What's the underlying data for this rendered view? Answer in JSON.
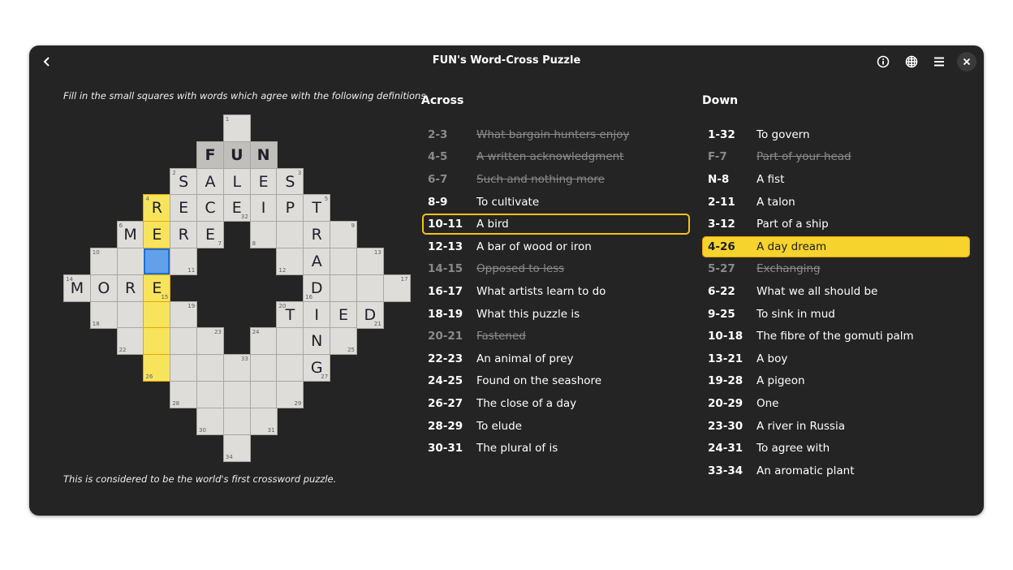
{
  "window": {
    "title": "FUN's Word-Cross Puzzle"
  },
  "header": {
    "icons": [
      "back-icon",
      "info-icon",
      "puzzle-icon",
      "menu-icon",
      "close-icon"
    ]
  },
  "intro": "Fill in the small squares with words which agree with the following definitions.",
  "outro": "This is considered to be the world's first crossword puzzle.",
  "colors": {
    "cell": "#deddda",
    "given": "#c0bfbc",
    "highlight": "#f8e45c",
    "selected": "#62a0ea",
    "active_clue": "#f6d32d"
  },
  "grid": {
    "cells": [
      {
        "r": 0,
        "c": 6,
        "n": "1",
        "p": "tl"
      },
      {
        "r": 1,
        "c": 5,
        "l": "F",
        "s": "given"
      },
      {
        "r": 1,
        "c": 6,
        "l": "U",
        "s": "given"
      },
      {
        "r": 1,
        "c": 7,
        "l": "N",
        "s": "given"
      },
      {
        "r": 2,
        "c": 4,
        "l": "S",
        "n": "2",
        "p": "tl"
      },
      {
        "r": 2,
        "c": 5,
        "l": "A"
      },
      {
        "r": 2,
        "c": 6,
        "l": "L"
      },
      {
        "r": 2,
        "c": 7,
        "l": "E"
      },
      {
        "r": 2,
        "c": 8,
        "l": "S",
        "n": "3",
        "p": "tr"
      },
      {
        "r": 3,
        "c": 3,
        "l": "R",
        "n": "4",
        "p": "tl",
        "s": "hl"
      },
      {
        "r": 3,
        "c": 4,
        "l": "E"
      },
      {
        "r": 3,
        "c": 5,
        "l": "C"
      },
      {
        "r": 3,
        "c": 6,
        "l": "E",
        "n": "32",
        "p": "br"
      },
      {
        "r": 3,
        "c": 7,
        "l": "I"
      },
      {
        "r": 3,
        "c": 8,
        "l": "P"
      },
      {
        "r": 3,
        "c": 9,
        "l": "T",
        "n": "5",
        "p": "tr"
      },
      {
        "r": 4,
        "c": 2,
        "l": "M",
        "n": "6",
        "p": "tl"
      },
      {
        "r": 4,
        "c": 3,
        "l": "E",
        "s": "hl"
      },
      {
        "r": 4,
        "c": 4,
        "l": "R"
      },
      {
        "r": 4,
        "c": 5,
        "l": "E",
        "n": "7",
        "p": "br"
      },
      {
        "r": 4,
        "c": 7,
        "n": "8",
        "p": "bl"
      },
      {
        "r": 4,
        "c": 8
      },
      {
        "r": 4,
        "c": 9,
        "l": "R"
      },
      {
        "r": 4,
        "c": 10,
        "n": "9",
        "p": "tr"
      },
      {
        "r": 5,
        "c": 1,
        "n": "10",
        "p": "tl"
      },
      {
        "r": 5,
        "c": 2
      },
      {
        "r": 5,
        "c": 3,
        "s": "sel"
      },
      {
        "r": 5,
        "c": 4,
        "n": "11",
        "p": "br"
      },
      {
        "r": 5,
        "c": 8,
        "n": "12",
        "p": "bl"
      },
      {
        "r": 5,
        "c": 9,
        "l": "A"
      },
      {
        "r": 5,
        "c": 10
      },
      {
        "r": 5,
        "c": 11,
        "n": "13",
        "p": "tr"
      },
      {
        "r": 6,
        "c": 0,
        "l": "M",
        "n": "14",
        "p": "tl"
      },
      {
        "r": 6,
        "c": 1,
        "l": "O"
      },
      {
        "r": 6,
        "c": 2,
        "l": "R"
      },
      {
        "r": 6,
        "c": 3,
        "l": "E",
        "n": "15",
        "p": "br",
        "s": "hl"
      },
      {
        "r": 6,
        "c": 9,
        "l": "D",
        "n": "16",
        "p": "bl"
      },
      {
        "r": 6,
        "c": 10
      },
      {
        "r": 6,
        "c": 11
      },
      {
        "r": 6,
        "c": 12,
        "n": "17",
        "p": "tr"
      },
      {
        "r": 7,
        "c": 1,
        "n": "18",
        "p": "bl"
      },
      {
        "r": 7,
        "c": 2
      },
      {
        "r": 7,
        "c": 3,
        "s": "hl"
      },
      {
        "r": 7,
        "c": 4,
        "n": "19",
        "p": "tr"
      },
      {
        "r": 7,
        "c": 8,
        "l": "T",
        "n": "20",
        "p": "tl"
      },
      {
        "r": 7,
        "c": 9,
        "l": "I"
      },
      {
        "r": 7,
        "c": 10,
        "l": "E"
      },
      {
        "r": 7,
        "c": 11,
        "l": "D",
        "n": "21",
        "p": "br"
      },
      {
        "r": 8,
        "c": 2,
        "n": "22",
        "p": "bl"
      },
      {
        "r": 8,
        "c": 3,
        "s": "hl"
      },
      {
        "r": 8,
        "c": 4
      },
      {
        "r": 8,
        "c": 5,
        "n": "23",
        "p": "tr"
      },
      {
        "r": 8,
        "c": 7,
        "n": "24",
        "p": "tl"
      },
      {
        "r": 8,
        "c": 8
      },
      {
        "r": 8,
        "c": 9,
        "l": "N"
      },
      {
        "r": 8,
        "c": 10,
        "n": "25",
        "p": "br"
      },
      {
        "r": 9,
        "c": 3,
        "n": "26",
        "p": "bl",
        "s": "hl"
      },
      {
        "r": 9,
        "c": 4
      },
      {
        "r": 9,
        "c": 5
      },
      {
        "r": 9,
        "c": 6,
        "n": "33",
        "p": "tr"
      },
      {
        "r": 9,
        "c": 7
      },
      {
        "r": 9,
        "c": 8
      },
      {
        "r": 9,
        "c": 9,
        "l": "G",
        "n": "27",
        "p": "br"
      },
      {
        "r": 10,
        "c": 4,
        "n": "28",
        "p": "bl"
      },
      {
        "r": 10,
        "c": 5
      },
      {
        "r": 10,
        "c": 6
      },
      {
        "r": 10,
        "c": 7
      },
      {
        "r": 10,
        "c": 8,
        "n": "29",
        "p": "br"
      },
      {
        "r": 11,
        "c": 5,
        "n": "30",
        "p": "bl"
      },
      {
        "r": 11,
        "c": 6
      },
      {
        "r": 11,
        "c": 7,
        "n": "31",
        "p": "br"
      },
      {
        "r": 12,
        "c": 6,
        "n": "34",
        "p": "bl"
      }
    ]
  },
  "across": {
    "title": "Across",
    "clues": [
      {
        "num": "2-3",
        "text": "What bargain hunters enjoy",
        "state": "done"
      },
      {
        "num": "4-5",
        "text": "A written acknowledgment",
        "state": "done"
      },
      {
        "num": "6-7",
        "text": "Such and nothing more",
        "state": "done"
      },
      {
        "num": "8-9",
        "text": "To cultivate"
      },
      {
        "num": "10-11",
        "text": "A bird",
        "state": "focus"
      },
      {
        "num": "12-13",
        "text": "A bar of wood or iron"
      },
      {
        "num": "14-15",
        "text": "Opposed to less",
        "state": "done"
      },
      {
        "num": "16-17",
        "text": "What artists learn to do"
      },
      {
        "num": "18-19",
        "text": "What this puzzle is"
      },
      {
        "num": "20-21",
        "text": "Fastened",
        "state": "done"
      },
      {
        "num": "22-23",
        "text": "An animal of prey"
      },
      {
        "num": "24-25",
        "text": "Found on the seashore"
      },
      {
        "num": "26-27",
        "text": "The close of a day"
      },
      {
        "num": "28-29",
        "text": "To elude"
      },
      {
        "num": "30-31",
        "text": "The plural of is"
      }
    ]
  },
  "down": {
    "title": "Down",
    "clues": [
      {
        "num": "1-32",
        "text": "To govern"
      },
      {
        "num": "F-7",
        "text": "Part of your head",
        "state": "done"
      },
      {
        "num": "N-8",
        "text": "A fist"
      },
      {
        "num": "2-11",
        "text": "A talon"
      },
      {
        "num": "3-12",
        "text": "Part of a ship"
      },
      {
        "num": "4-26",
        "text": "A day dream",
        "state": "active"
      },
      {
        "num": "5-27",
        "text": "Exchanging",
        "state": "done"
      },
      {
        "num": "6-22",
        "text": "What we all should be"
      },
      {
        "num": "9-25",
        "text": "To sink in mud"
      },
      {
        "num": "10-18",
        "text": "The fibre of the gomuti palm"
      },
      {
        "num": "13-21",
        "text": "A boy"
      },
      {
        "num": "19-28",
        "text": "A pigeon"
      },
      {
        "num": "20-29",
        "text": "One"
      },
      {
        "num": "23-30",
        "text": "A river in Russia"
      },
      {
        "num": "24-31",
        "text": "To agree with"
      },
      {
        "num": "33-34",
        "text": "An aromatic plant"
      }
    ]
  }
}
